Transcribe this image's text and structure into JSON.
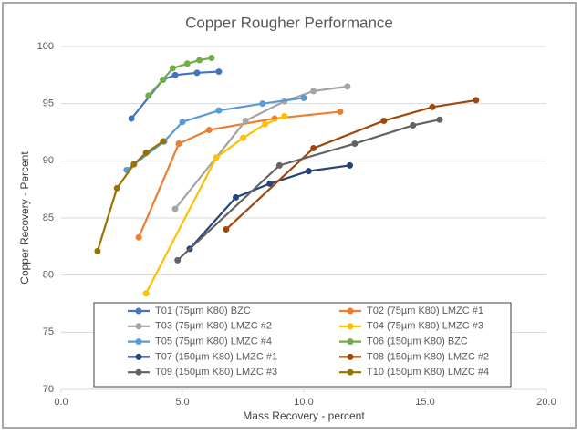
{
  "chart_data": {
    "type": "line",
    "title": "Copper Rougher Performance",
    "x_label": "Mass Recovery - percent",
    "y_label": "Copper Recovery - Percent",
    "xlim": [
      0,
      20
    ],
    "xticks": [
      {
        "value": 0,
        "label": "0.0"
      },
      {
        "value": 5,
        "label": "5.0"
      },
      {
        "value": 10,
        "label": "10.0"
      },
      {
        "value": 15,
        "label": "15.0"
      },
      {
        "value": 20,
        "label": "20.0"
      }
    ],
    "ylim": [
      70,
      100
    ],
    "yticks": [
      70,
      75,
      80,
      85,
      90,
      95,
      100
    ],
    "grid": "y",
    "legend": "bottom",
    "series": [
      {
        "name": "T01 (75µm K80) BZC",
        "color": "#4472c4",
        "x": [
          2.9,
          4.2,
          4.7,
          5.6,
          6.5
        ],
        "values": [
          93.7,
          97.1,
          97.5,
          97.7,
          97.8
        ]
      },
      {
        "name": "T02 (75µm K80) LMZC #1",
        "color": "#ed7d31",
        "x": [
          3.2,
          4.85,
          6.1,
          8.8,
          11.5
        ],
        "values": [
          83.3,
          91.5,
          92.7,
          93.7,
          94.3
        ]
      },
      {
        "name": "T03 (75µm K80) LMZC #2",
        "color": "#a5a5a5",
        "x": [
          4.7,
          7.6,
          9.2,
          10.4,
          11.8
        ],
        "values": [
          85.8,
          93.5,
          95.2,
          96.1,
          96.5
        ]
      },
      {
        "name": "T04 (75µm K80) LMZC #3",
        "color": "#ffc000",
        "x": [
          3.5,
          6.4,
          7.5,
          8.4,
          9.2
        ],
        "values": [
          78.4,
          90.3,
          92.0,
          93.2,
          93.9
        ]
      },
      {
        "name": "T05 (75µm K80) LMZC #4",
        "color": "#5b9bd5",
        "x": [
          2.7,
          4.25,
          5.0,
          6.5,
          8.3,
          10.0
        ],
        "values": [
          89.2,
          91.7,
          93.4,
          94.4,
          95.0,
          95.5
        ]
      },
      {
        "name": "T06 (150µm K80) BZC",
        "color": "#70ad47",
        "x": [
          3.6,
          4.2,
          4.6,
          5.2,
          5.7,
          6.2
        ],
        "values": [
          95.7,
          97.1,
          98.1,
          98.5,
          98.8,
          99.0
        ]
      },
      {
        "name": "T07 (150µm K80) LMZC #1",
        "color": "#264478",
        "x": [
          5.3,
          7.2,
          8.6,
          10.2,
          11.9
        ],
        "values": [
          82.3,
          86.8,
          88.0,
          89.1,
          89.6
        ]
      },
      {
        "name": "T08 (150µm K80) LMZC #2",
        "color": "#9e480e",
        "x": [
          6.8,
          10.4,
          13.3,
          15.3,
          17.1
        ],
        "values": [
          84.0,
          91.1,
          93.5,
          94.7,
          95.3
        ]
      },
      {
        "name": "T09 (150µm K80) LMZC #3",
        "color": "#636363",
        "x": [
          4.8,
          9.0,
          12.1,
          14.5,
          15.6
        ],
        "values": [
          81.3,
          89.6,
          91.5,
          93.1,
          93.6
        ]
      },
      {
        "name": "T10 (150µm K80) LMZC #4",
        "color": "#997300",
        "x": [
          1.5,
          2.3,
          3.0,
          3.5,
          4.2
        ],
        "values": [
          82.1,
          87.6,
          89.7,
          90.7,
          91.7
        ]
      }
    ]
  }
}
